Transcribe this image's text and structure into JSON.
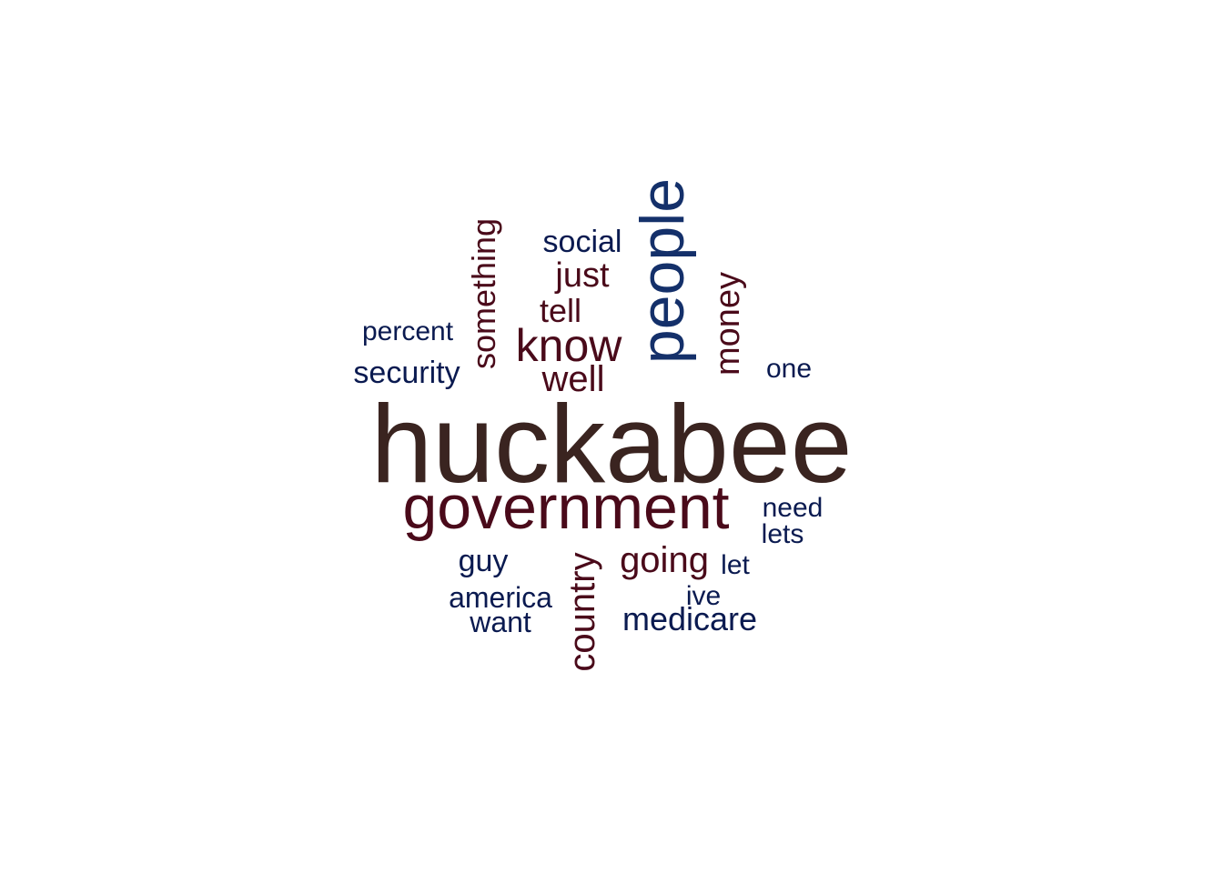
{
  "palette": {
    "dark_brown": "#3a2420",
    "maroon": "#4a0a1a",
    "navy": "#0a1a50",
    "blue": "#14306a",
    "background": "#ffffff"
  },
  "words": [
    {
      "text": "huckabee",
      "color": "#3a2420",
      "orientation": "horizontal"
    },
    {
      "text": "government",
      "color": "#4a0a1a",
      "orientation": "horizontal"
    },
    {
      "text": "people",
      "color": "#14306a",
      "orientation": "vertical"
    },
    {
      "text": "know",
      "color": "#4a0a1a",
      "orientation": "horizontal"
    },
    {
      "text": "well",
      "color": "#4a0a1a",
      "orientation": "horizontal"
    },
    {
      "text": "going",
      "color": "#4a0a1a",
      "orientation": "horizontal"
    },
    {
      "text": "country",
      "color": "#4a0a1a",
      "orientation": "vertical"
    },
    {
      "text": "money",
      "color": "#4a0a1a",
      "orientation": "vertical"
    },
    {
      "text": "something",
      "color": "#4a0a1a",
      "orientation": "vertical"
    },
    {
      "text": "just",
      "color": "#4a0a1a",
      "orientation": "horizontal"
    },
    {
      "text": "tell",
      "color": "#4a0a1a",
      "orientation": "horizontal"
    },
    {
      "text": "social",
      "color": "#0a1a50",
      "orientation": "horizontal"
    },
    {
      "text": "security",
      "color": "#0a1a50",
      "orientation": "horizontal"
    },
    {
      "text": "percent",
      "color": "#0a1a50",
      "orientation": "horizontal"
    },
    {
      "text": "one",
      "color": "#0a1a50",
      "orientation": "horizontal"
    },
    {
      "text": "need",
      "color": "#0a1a50",
      "orientation": "horizontal"
    },
    {
      "text": "lets",
      "color": "#0a1a50",
      "orientation": "horizontal"
    },
    {
      "text": "let",
      "color": "#0a1a50",
      "orientation": "horizontal"
    },
    {
      "text": "guy",
      "color": "#0a1a50",
      "orientation": "horizontal"
    },
    {
      "text": "america",
      "color": "#0a1a50",
      "orientation": "horizontal"
    },
    {
      "text": "want",
      "color": "#0a1a50",
      "orientation": "horizontal"
    },
    {
      "text": "ive",
      "color": "#0a1a50",
      "orientation": "horizontal"
    },
    {
      "text": "medicare",
      "color": "#0a1a50",
      "orientation": "horizontal"
    }
  ]
}
